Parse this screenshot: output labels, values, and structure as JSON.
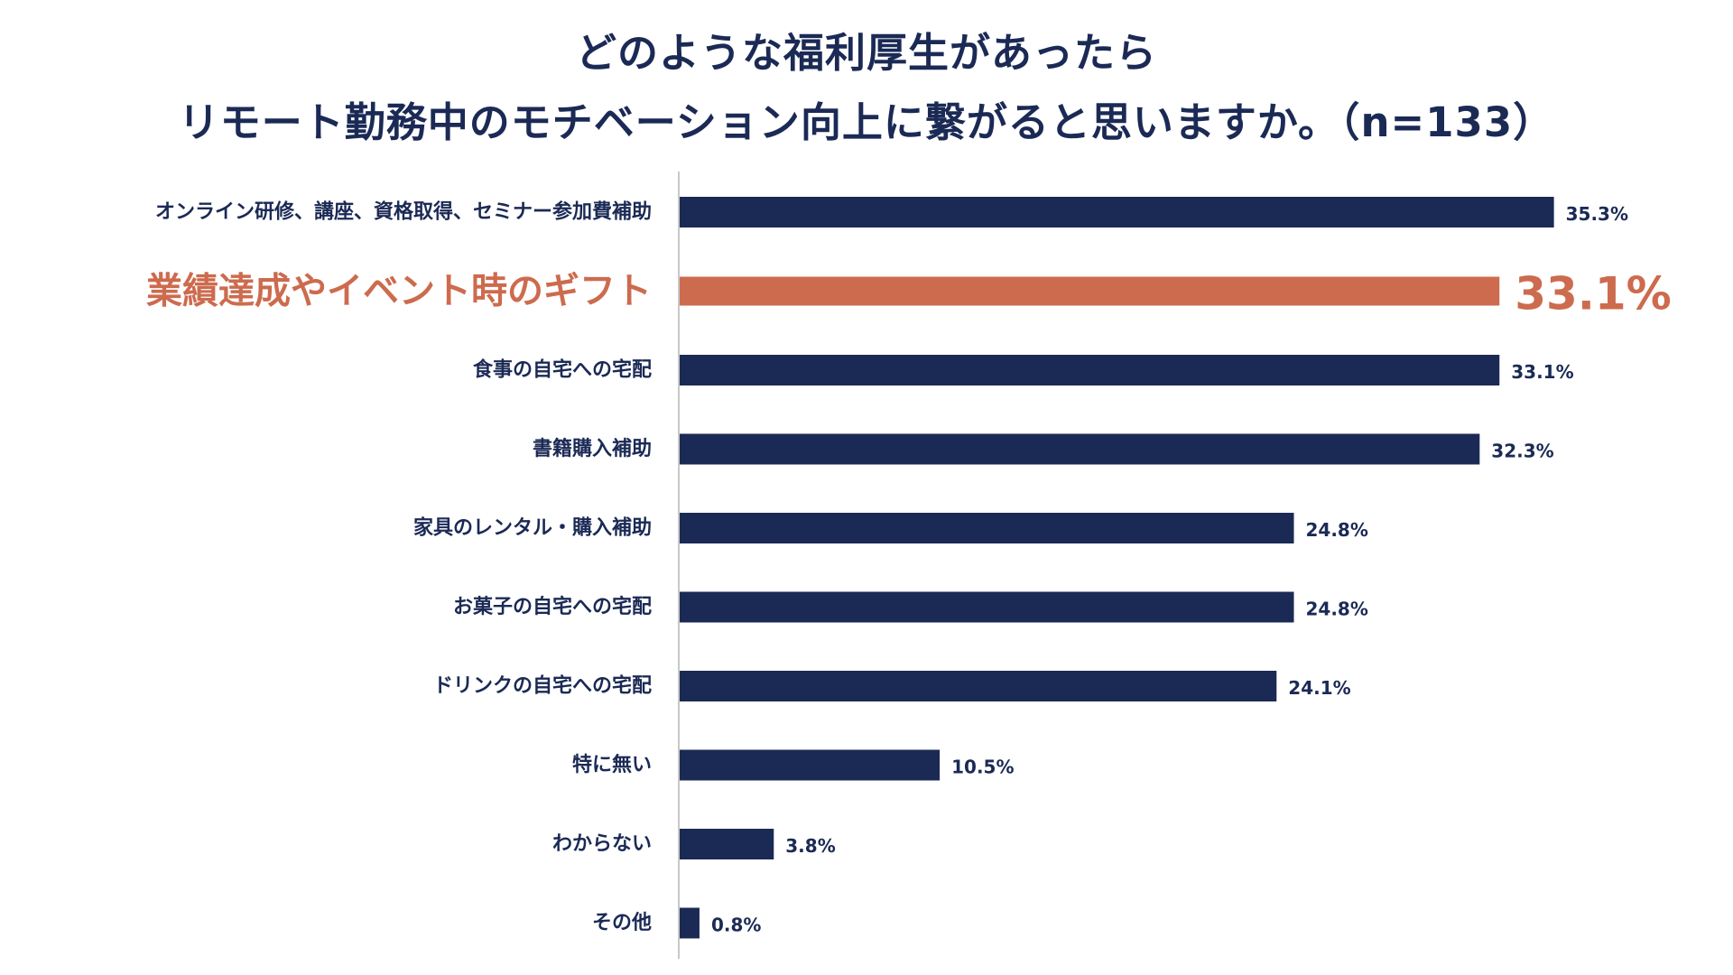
{
  "chart_data": {
    "type": "bar",
    "orientation": "horizontal",
    "title_lines": [
      "どのような福利厚生があったら",
      "リモート勤務中のモチベーション向上に繋がると思いますか。（n=133）"
    ],
    "categories": [
      "オンライン研修、講座、資格取得、セミナー参加費補助",
      "業績達成やイベント時のギフト",
      "食事の自宅への宅配",
      "書籍購入補助",
      "家具のレンタル・購入補助",
      "お菓子の自宅への宅配",
      "ドリンクの自宅への宅配",
      "特に無い",
      "わからない",
      "その他"
    ],
    "values": [
      35.3,
      33.1,
      33.1,
      32.3,
      24.8,
      24.8,
      24.1,
      10.5,
      3.8,
      0.8
    ],
    "value_labels": [
      "35.3%",
      "33.1%",
      "33.1%",
      "32.3%",
      "24.8%",
      "24.8%",
      "24.1%",
      "10.5%",
      "3.8%",
      "0.8%"
    ],
    "highlight_index": 1,
    "unit": "%",
    "xlim": [
      0,
      40
    ],
    "grid": false,
    "colors": {
      "bar": "#1b2a55",
      "highlight": "#cd6b4e",
      "axis": "#c8c8c8"
    }
  }
}
